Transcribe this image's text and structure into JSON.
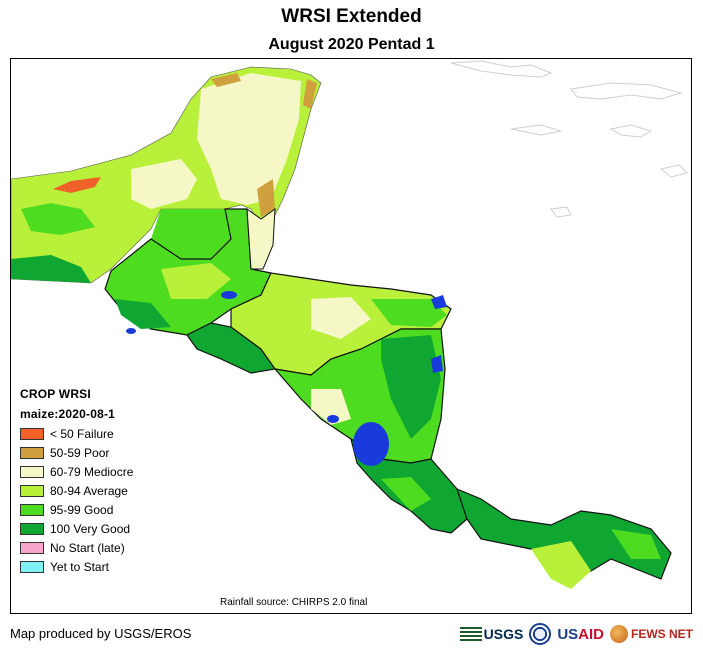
{
  "header": {
    "title": "WRSI Extended",
    "subtitle": "August 2020 Pentad 1"
  },
  "legend": {
    "title": "CROP WRSI",
    "subtitle": "maize:2020-08-1",
    "items": [
      {
        "label": "< 50  Failure",
        "color": "#f0622a"
      },
      {
        "label": "50-59 Poor",
        "color": "#d1a03e"
      },
      {
        "label": "60-79 Mediocre",
        "color": "#f5f8c6"
      },
      {
        "label": "80-94 Average",
        "color": "#b8f03a"
      },
      {
        "label": "95-99 Good",
        "color": "#4ddc20"
      },
      {
        "label": "100 Very Good",
        "color": "#0fa632"
      },
      {
        "label": "No Start (late)",
        "color": "#f5a6c9"
      },
      {
        "label": "Yet to Start",
        "color": "#7ff2f2"
      }
    ]
  },
  "map": {
    "water_color": "#1a3bdc",
    "coast_line_color": "#cfcfcf"
  },
  "footer": {
    "source": "Rainfall source: CHIRPS 2.0 final",
    "credit": "Map produced by USGS/EROS",
    "logos": {
      "usgs": "USGS",
      "usaid_prefix": "US",
      "usaid_suffix": "AID",
      "fews": "FEWS NET"
    }
  }
}
